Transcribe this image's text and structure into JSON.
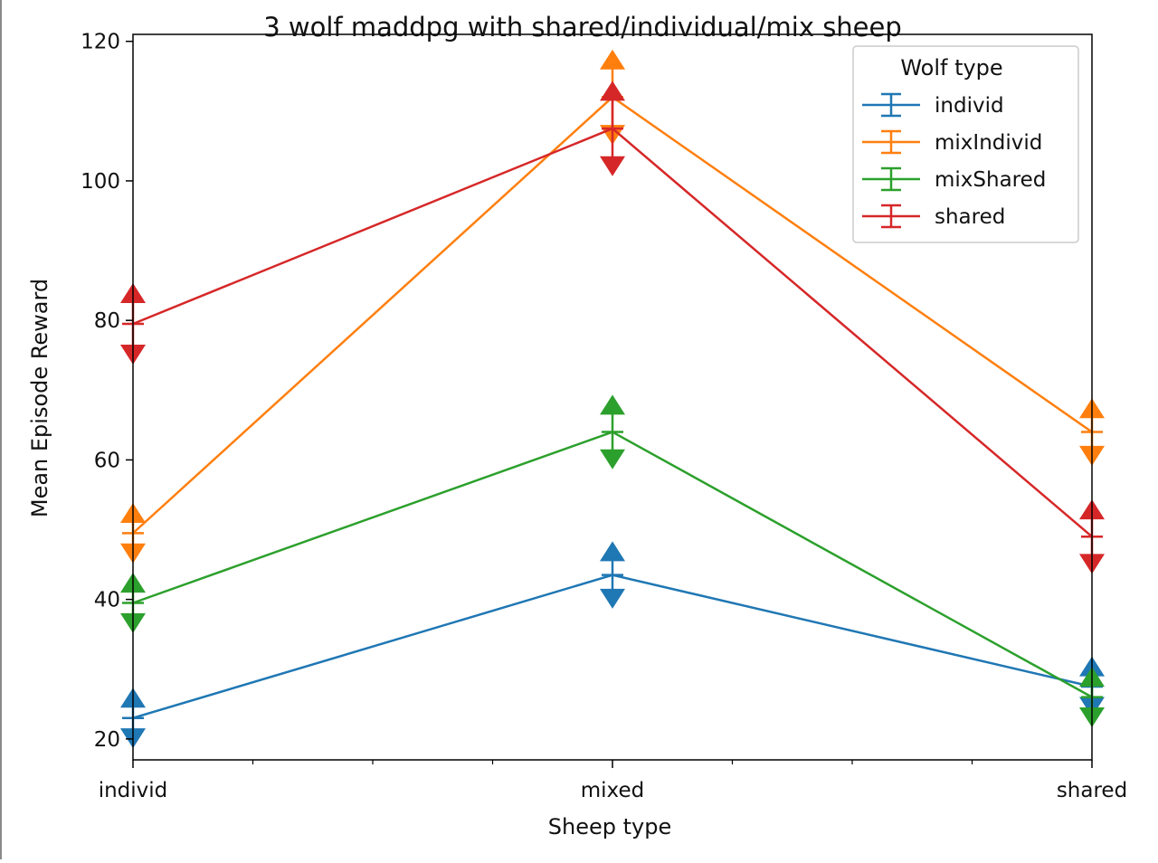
{
  "chart_data": {
    "type": "line",
    "title": "3 wolf maddpg with shared/individual/mix sheep",
    "xlabel": "Sheep type",
    "ylabel": "Mean Episode Reward",
    "categories": [
      "individ",
      "mixed",
      "shared"
    ],
    "ylim": [
      17,
      121
    ],
    "yticks": [
      20,
      40,
      60,
      80,
      100,
      120
    ],
    "grid": false,
    "legend": {
      "title": "Wolf type",
      "placement": "upper-right"
    },
    "series": [
      {
        "name": "individ",
        "color": "#1f77b4",
        "values": [
          23,
          43.5,
          27.5
        ],
        "errors": [
          2,
          2.5,
          2
        ]
      },
      {
        "name": "mixIndivid",
        "color": "#ff7f0e",
        "values": [
          49.5,
          112,
          64
        ],
        "errors": [
          2,
          4.5,
          2.5
        ]
      },
      {
        "name": "mixShared",
        "color": "#2ca02c",
        "values": [
          39.5,
          64,
          26
        ],
        "errors": [
          2,
          3,
          2
        ]
      },
      {
        "name": "shared",
        "color": "#d62728",
        "values": [
          79.5,
          107.5,
          49
        ],
        "errors": [
          3.5,
          4.5,
          3
        ]
      }
    ]
  }
}
